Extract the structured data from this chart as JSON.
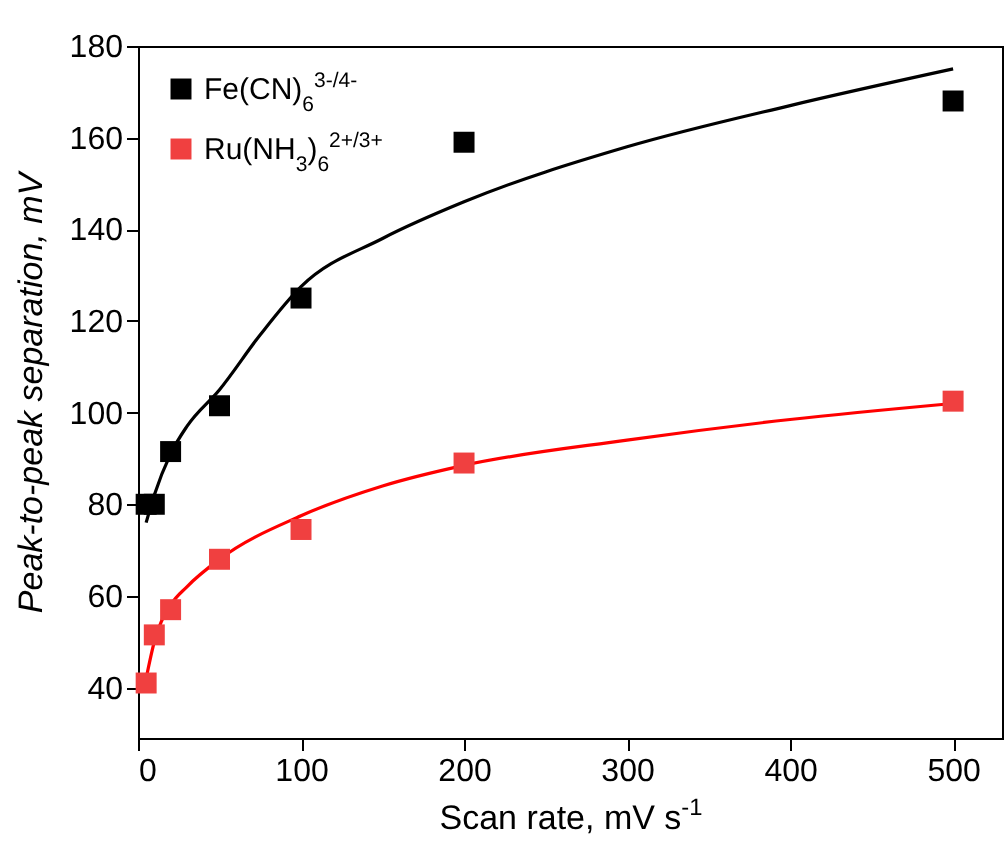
{
  "chart_data": {
    "type": "scatter",
    "xlabel": "Scan rate, mV s$^{-1}$",
    "ylabel": "Peak-to-peak separation, mV",
    "xlim": [
      0,
      530
    ],
    "ylim": [
      29,
      180
    ],
    "xticks": [
      0,
      100,
      200,
      300,
      400,
      500
    ],
    "yticks": [
      40,
      60,
      80,
      100,
      120,
      140,
      160,
      180
    ],
    "legend": "top left",
    "grid": false,
    "series": [
      {
        "name": "Fe(CN)$_{6}$$^{3-/4-}$",
        "marker": "square",
        "color": "#000000",
        "x": [
          5,
          10,
          20,
          50,
          100,
          200,
          500
        ],
        "values": [
          80,
          80,
          91.5,
          101.5,
          125,
          159,
          168
        ]
      },
      {
        "name": "Ru(NH$_{3}$)$_{6}$$^{2+/3+}$",
        "marker": "square",
        "color": "#f04040",
        "x": [
          5,
          10,
          20,
          50,
          100,
          200,
          500
        ],
        "values": [
          41,
          51.5,
          57,
          68,
          74.5,
          89,
          102.5
        ]
      },
      {
        "type": "line",
        "color": "#000000",
        "x": [
          5,
          10,
          20,
          30,
          50,
          75,
          100,
          150,
          200,
          300,
          400,
          500
        ],
        "values": [
          76,
          82,
          91,
          97,
          105,
          117,
          127.5,
          138,
          146,
          158,
          167,
          175
        ]
      },
      {
        "type": "line",
        "color": "#ff0000",
        "x": [
          5,
          10,
          20,
          30,
          50,
          100,
          150,
          200,
          300,
          400,
          500
        ],
        "values": [
          42,
          50,
          58,
          62,
          68,
          77.5,
          84,
          88.5,
          94,
          98.5,
          102
        ]
      }
    ]
  }
}
